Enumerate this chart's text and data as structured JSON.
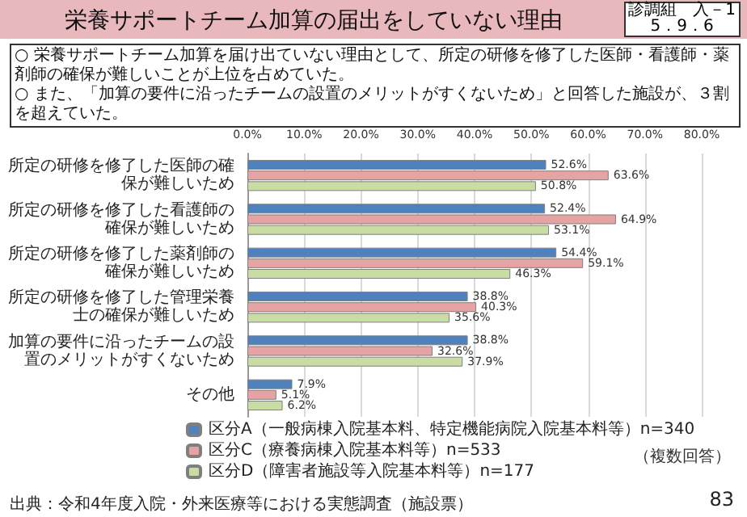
{
  "chart_data": {
    "type": "bar",
    "orientation": "horizontal",
    "title": "栄養サポートチーム加算の届出をしていない理由",
    "annotations": [
      "診調組　入－1\n5．9．6",
      "○ 栄養サポートチーム加算を届け出ていない理由として、所定の研修を修了した医師・看護師・薬剤師の確保が難しいことが上位を占めていた。",
      "○ また、「加算の要件に沿ったチームの設置のメリットがすくないため」と回答した施設が、３割を超えていた。",
      "（複数回答）",
      "出典：令和4年度入院・外来医療等における実態調査（施設票）",
      "83"
    ],
    "categories": [
      "所定の研修を修了した医師の確保が難しいため",
      "所定の研修を修了した看護師の確保が難しいため",
      "所定の研修を修了した薬剤師の確保が難しいため",
      "所定の研修を修了した管理栄養士の確保が難しいため",
      "加算の要件に沿ったチームの設置のメリットがすくないため",
      "その他"
    ],
    "series": [
      {
        "name": "区分A（一般病棟入院基本料、特定機能病院入院基本料等）n=340",
        "color": "#4f81bd",
        "values": [
          52.6,
          52.4,
          54.4,
          38.8,
          38.8,
          7.9
        ],
        "value_labels": [
          "52.6%",
          "52.4%",
          "54.4%",
          "38.8%",
          "38.8%",
          "7.9%"
        ]
      },
      {
        "name": "区分C（療養病棟入院基本料等）n=533",
        "color": "#e6a3a3",
        "values": [
          63.6,
          64.9,
          59.1,
          40.3,
          32.6,
          5.1
        ],
        "value_labels": [
          "63.6%",
          "64.9%",
          "59.1%",
          "40.3%",
          "32.6%",
          "5.1%"
        ]
      },
      {
        "name": "区分D（障害者施設等入院基本料等）n=177",
        "color": "#c9dca4",
        "values": [
          50.8,
          53.1,
          46.3,
          35.6,
          37.9,
          6.2
        ],
        "value_labels": [
          "50.8%",
          "53.1%",
          "46.3%",
          "35.6%",
          "37.9%",
          "6.2%"
        ]
      }
    ],
    "xlim": [
      0,
      80
    ],
    "xticks": [
      {
        "value": 0,
        "label": "0.0%"
      },
      {
        "value": 10,
        "label": "10.0%"
      },
      {
        "value": 20,
        "label": "20.0%"
      },
      {
        "value": 30,
        "label": "30.0%"
      },
      {
        "value": 40,
        "label": "40.0%"
      },
      {
        "value": 50,
        "label": "50.0%"
      },
      {
        "value": 60,
        "label": "60.0%"
      },
      {
        "value": 70,
        "label": "70.0%"
      },
      {
        "value": 80,
        "label": "80.0%"
      }
    ],
    "grid": "x",
    "legend": "bottom"
  }
}
